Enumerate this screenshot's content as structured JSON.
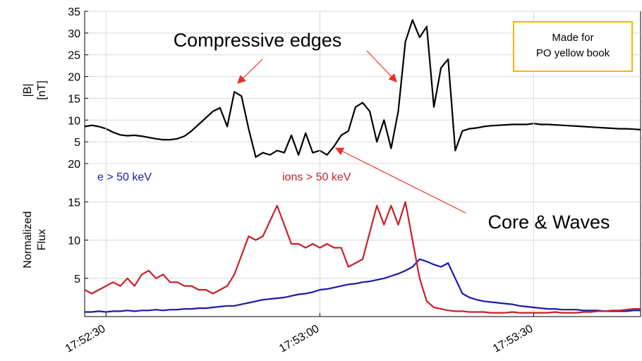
{
  "chart_data": [
    {
      "type": "line",
      "y_label": [
        "|B|",
        "[nT]"
      ],
      "annotations": [
        "Compressive edges",
        "Made for",
        "PO yellow book"
      ],
      "x": [
        "17:52:27",
        "17:52:28",
        "17:52:29",
        "17:52:30",
        "17:52:31",
        "17:52:32",
        "17:52:33",
        "17:52:34",
        "17:52:35",
        "17:52:36",
        "17:52:37",
        "17:52:38",
        "17:52:39",
        "17:52:40",
        "17:52:41",
        "17:52:42",
        "17:52:43",
        "17:52:44",
        "17:52:45",
        "17:52:46",
        "17:52:47",
        "17:52:48",
        "17:52:49",
        "17:52:50",
        "17:52:51",
        "17:52:52",
        "17:52:53",
        "17:52:54",
        "17:52:55",
        "17:52:56",
        "17:52:57",
        "17:52:58",
        "17:52:59",
        "17:53:00",
        "17:53:01",
        "17:53:02",
        "17:53:03",
        "17:53:04",
        "17:53:05",
        "17:53:06",
        "17:53:07",
        "17:53:08",
        "17:53:09",
        "17:53:10",
        "17:53:11",
        "17:53:12",
        "17:53:13",
        "17:53:14",
        "17:53:15",
        "17:53:16",
        "17:53:17",
        "17:53:18",
        "17:53:19",
        "17:53:20",
        "17:53:21",
        "17:53:22",
        "17:53:23",
        "17:53:24",
        "17:53:25",
        "17:53:26",
        "17:53:27",
        "17:53:28",
        "17:53:29",
        "17:53:30",
        "17:53:31",
        "17:53:32",
        "17:53:33",
        "17:53:34",
        "17:53:35",
        "17:53:36",
        "17:53:37",
        "17:53:38",
        "17:53:39",
        "17:53:40",
        "17:53:41",
        "17:53:42",
        "17:53:43",
        "17:53:44",
        "17:53:45"
      ],
      "series": [
        {
          "name": "|B|",
          "color": "#000000",
          "values": [
            8.5,
            8.8,
            8.5,
            8.0,
            7.2,
            6.6,
            6.4,
            6.5,
            6.3,
            6.0,
            5.7,
            5.5,
            5.5,
            5.7,
            6.3,
            7.5,
            9.0,
            10.5,
            12.0,
            12.8,
            8.5,
            16.5,
            15.5,
            8.0,
            1.5,
            2.5,
            2.0,
            3.0,
            2.5,
            6.5,
            2.0,
            7.0,
            2.5,
            3.0,
            2.0,
            4.0,
            6.5,
            7.5,
            13.0,
            14.0,
            12.0,
            5.0,
            10.0,
            3.5,
            12.0,
            28.0,
            33.0,
            29.0,
            31.5,
            13.0,
            22.0,
            24.0,
            3.0,
            7.5,
            8.0,
            8.2,
            8.5,
            8.7,
            8.8,
            8.9,
            9.0,
            9.0,
            9.0,
            9.2,
            9.0,
            9.0,
            8.9,
            8.8,
            8.7,
            8.6,
            8.5,
            8.4,
            8.3,
            8.2,
            8.1,
            8.0,
            8.0,
            7.9,
            7.8
          ]
        }
      ],
      "xlim": [
        "17:52:27",
        "17:53:45"
      ],
      "ylim": [
        0,
        35
      ],
      "yticks": [
        5,
        10,
        15,
        20,
        25,
        30,
        35
      ],
      "grid": true
    },
    {
      "type": "line",
      "y_label": [
        "Normalized",
        "Flux"
      ],
      "annotations": [
        "Core & Waves"
      ],
      "x": [
        "17:52:27",
        "17:52:28",
        "17:52:29",
        "17:52:30",
        "17:52:31",
        "17:52:32",
        "17:52:33",
        "17:52:34",
        "17:52:35",
        "17:52:36",
        "17:52:37",
        "17:52:38",
        "17:52:39",
        "17:52:40",
        "17:52:41",
        "17:52:42",
        "17:52:43",
        "17:52:44",
        "17:52:45",
        "17:52:46",
        "17:52:47",
        "17:52:48",
        "17:52:49",
        "17:52:50",
        "17:52:51",
        "17:52:52",
        "17:52:53",
        "17:52:54",
        "17:52:55",
        "17:52:56",
        "17:52:57",
        "17:52:58",
        "17:52:59",
        "17:53:00",
        "17:53:01",
        "17:53:02",
        "17:53:03",
        "17:53:04",
        "17:53:05",
        "17:53:06",
        "17:53:07",
        "17:53:08",
        "17:53:09",
        "17:53:10",
        "17:53:11",
        "17:53:12",
        "17:53:13",
        "17:53:14",
        "17:53:15",
        "17:53:16",
        "17:53:17",
        "17:53:18",
        "17:53:19",
        "17:53:20",
        "17:53:21",
        "17:53:22",
        "17:53:23",
        "17:53:24",
        "17:53:25",
        "17:53:26",
        "17:53:27",
        "17:53:28",
        "17:53:29",
        "17:53:30",
        "17:53:31",
        "17:53:32",
        "17:53:33",
        "17:53:34",
        "17:53:35",
        "17:53:36",
        "17:53:37",
        "17:53:38",
        "17:53:39",
        "17:53:40",
        "17:53:41",
        "17:53:42",
        "17:53:43",
        "17:53:44",
        "17:53:45"
      ],
      "series": [
        {
          "name": "e > 50 keV",
          "color": "#1a1aa8",
          "values": [
            0.6,
            0.6,
            0.7,
            0.6,
            0.7,
            0.7,
            0.8,
            0.7,
            0.8,
            0.8,
            0.9,
            0.8,
            0.9,
            0.9,
            1.0,
            1.0,
            1.1,
            1.1,
            1.2,
            1.3,
            1.4,
            1.4,
            1.6,
            1.8,
            2.0,
            2.2,
            2.3,
            2.4,
            2.5,
            2.7,
            2.9,
            3.0,
            3.2,
            3.5,
            3.6,
            3.8,
            4.0,
            4.2,
            4.3,
            4.5,
            4.6,
            4.8,
            5.0,
            5.3,
            5.6,
            6.0,
            6.5,
            7.5,
            7.2,
            6.8,
            6.5,
            7.0,
            5.0,
            3.0,
            2.5,
            2.2,
            2.0,
            1.9,
            1.8,
            1.7,
            1.6,
            1.4,
            1.3,
            1.2,
            1.1,
            1.0,
            1.0,
            0.9,
            0.9,
            0.9,
            0.8,
            0.8,
            0.8,
            0.7,
            0.7,
            0.7,
            0.7,
            0.8,
            0.8
          ]
        },
        {
          "name": "ions > 50 keV",
          "color": "#c8202a",
          "values": [
            3.5,
            3.0,
            3.5,
            4.0,
            4.5,
            4.0,
            5.0,
            4.0,
            5.5,
            6.0,
            5.0,
            5.5,
            4.5,
            4.5,
            4.0,
            4.0,
            3.5,
            3.5,
            3.0,
            3.5,
            4.0,
            5.5,
            8.0,
            10.5,
            10.0,
            10.5,
            12.5,
            14.5,
            12.0,
            9.5,
            9.5,
            9.0,
            9.5,
            9.0,
            9.5,
            9.0,
            9.0,
            6.5,
            7.0,
            7.5,
            11.0,
            14.5,
            12.0,
            14.5,
            12.0,
            15.0,
            10.0,
            5.0,
            2.0,
            1.2,
            1.0,
            0.8,
            0.7,
            0.7,
            0.6,
            0.6,
            0.6,
            0.5,
            0.5,
            0.5,
            0.6,
            0.5,
            0.5,
            0.5,
            0.5,
            0.5,
            0.6,
            0.5,
            0.5,
            0.5,
            0.6,
            0.6,
            0.7,
            0.7,
            0.8,
            0.8,
            0.9,
            1.0,
            1.0
          ]
        }
      ],
      "xlim": [
        "17:52:27",
        "17:53:45"
      ],
      "ylim": [
        0,
        20
      ],
      "yticks": [
        5,
        10,
        15,
        20
      ],
      "xticks": [
        "17:52:30",
        "17:53:00",
        "17:53:30"
      ],
      "grid": true
    }
  ]
}
